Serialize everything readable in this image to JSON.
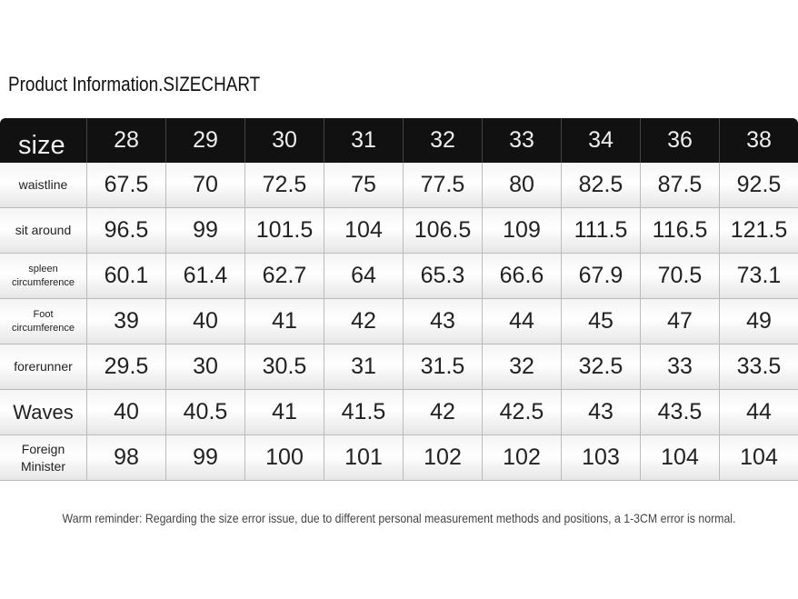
{
  "title": "Product Information.SIZECHART",
  "table": {
    "header": [
      "size",
      "28",
      "29",
      "30",
      "31",
      "32",
      "33",
      "34",
      "36",
      "38"
    ],
    "rows": [
      [
        "waistline",
        "67.5",
        "70",
        "72.5",
        "75",
        "77.5",
        "80",
        "82.5",
        "87.5",
        "92.5"
      ],
      [
        "sit around",
        "96.5",
        "99",
        "101.5",
        "104",
        "106.5",
        "109",
        "111.5",
        "116.5",
        "121.5"
      ],
      [
        "spleen circumference",
        "60.1",
        "61.4",
        "62.7",
        "64",
        "65.3",
        "66.6",
        "67.9",
        "70.5",
        "73.1"
      ],
      [
        "Foot circumference",
        "39",
        "40",
        "41",
        "42",
        "43",
        "44",
        "45",
        "47",
        "49"
      ],
      [
        "forerunner",
        "29.5",
        "30",
        "30.5",
        "31",
        "31.5",
        "32",
        "32.5",
        "33",
        "33.5"
      ],
      [
        "Waves",
        "40",
        "40.5",
        "41",
        "41.5",
        "42",
        "42.5",
        "43",
        "43.5",
        "44"
      ],
      [
        "Foreign Minister",
        "98",
        "99",
        "100",
        "101",
        "102",
        "102",
        "103",
        "104",
        "104"
      ]
    ]
  },
  "note": "Warm reminder: Regarding the size error issue, due to different personal measurement methods and positions, a 1-3CM error is normal."
}
